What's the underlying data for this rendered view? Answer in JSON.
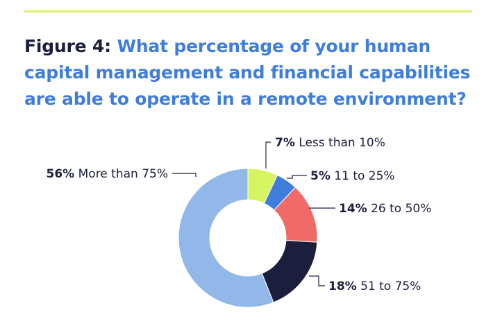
{
  "figure": {
    "label": "Figure 4:",
    "question": "What percentage of your human capital management and financial capabilities are able to operate in a remote environment?"
  },
  "chart_data": {
    "type": "pie",
    "donut": true,
    "title": "Figure 4: What percentage of your human capital management and financial capabilities are able to operate in a remote environment?",
    "slices": [
      {
        "label": "Less than 10%",
        "value": 7,
        "display": "7%",
        "color": "#d4f55f"
      },
      {
        "label": "11 to 25%",
        "value": 5,
        "display": "5%",
        "color": "#3f7ddd"
      },
      {
        "label": "26 to 50%",
        "value": 14,
        "display": "14%",
        "color": "#f06a68"
      },
      {
        "label": "51 to 75%",
        "value": 18,
        "display": "18%",
        "color": "#1b1e3d"
      },
      {
        "label": "More than 75%",
        "value": 56,
        "display": "56%",
        "color": "#92b8ea"
      }
    ]
  },
  "colors": {
    "accent_rule": "#d9f26c",
    "title_dark": "#1b1e3d",
    "title_blue": "#3f7ddd"
  }
}
